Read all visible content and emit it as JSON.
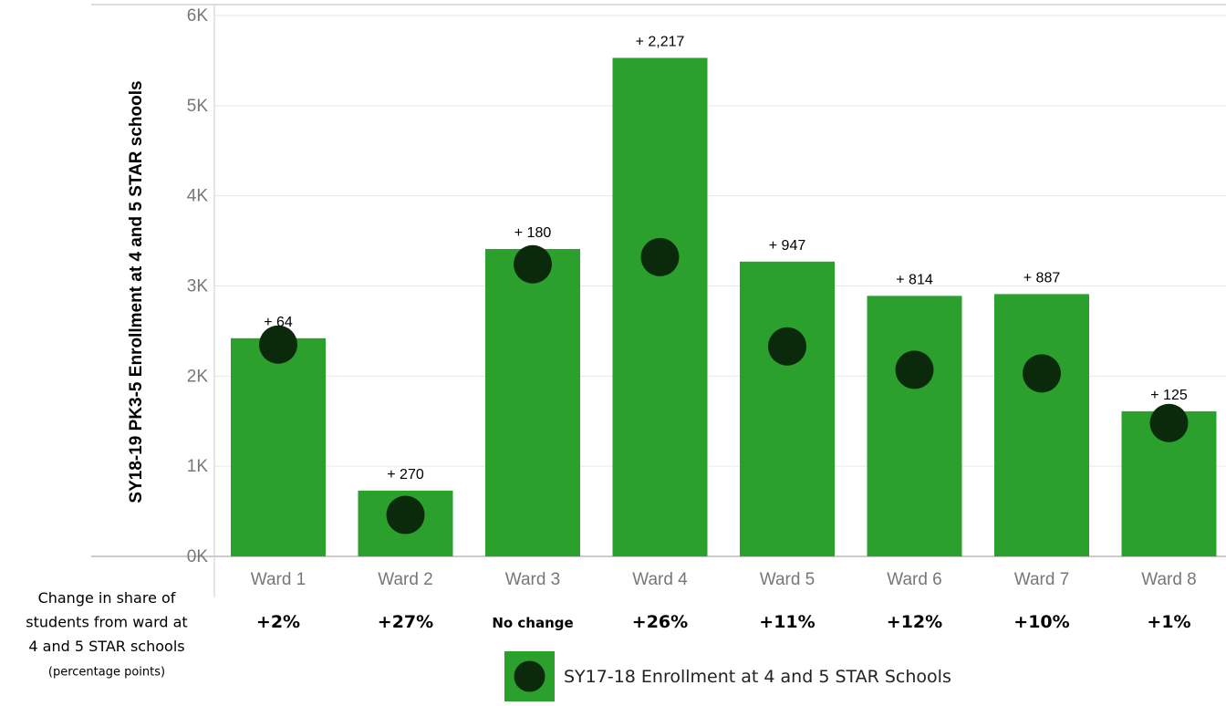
{
  "chart_data": {
    "type": "bar",
    "ylabel": "SY18-19 PK3-5 Enrollment  at 4 and 5 STAR schools",
    "ylim": [
      0,
      6000
    ],
    "yticks": [
      {
        "value": 0,
        "label": "0K"
      },
      {
        "value": 1000,
        "label": "1K"
      },
      {
        "value": 2000,
        "label": "2K"
      },
      {
        "value": 3000,
        "label": "3K"
      },
      {
        "value": 4000,
        "label": "4K"
      },
      {
        "value": 5000,
        "label": "5K"
      },
      {
        "value": 6000,
        "label": "6K"
      }
    ],
    "categories": [
      "Ward 1",
      "Ward 2",
      "Ward 3",
      "Ward 4",
      "Ward 5",
      "Ward 6",
      "Ward 7",
      "Ward 8"
    ],
    "series": [
      {
        "type": "bar",
        "values": [
          2420,
          730,
          3410,
          5530,
          3270,
          2890,
          2910,
          1610
        ],
        "color": "#2ca02c"
      },
      {
        "name": "SY17-18 Enrollment at 4 and 5 STAR Schools",
        "type": "dot",
        "values": [
          2350,
          460,
          3240,
          3320,
          2330,
          2070,
          2030,
          1480
        ],
        "color": "#0b2a0b"
      }
    ],
    "data_labels": [
      "+ 64",
      "+ 270",
      "+ 180",
      "+ 2,217",
      "+ 947",
      "+ 814",
      "+ 887",
      "+ 125"
    ],
    "grid": true,
    "legend_position": "bottom"
  },
  "change_row": {
    "header": [
      "Change in share of",
      "students from ward at",
      "4 and 5 STAR schools",
      "(percentage points)"
    ],
    "values": [
      "+2%",
      "+27%",
      "No change",
      "+26%",
      "+11%",
      "+12%",
      "+10%",
      "+1%"
    ]
  },
  "legend": {
    "label": "SY17-18 Enrollment at 4 and 5 STAR Schools"
  }
}
